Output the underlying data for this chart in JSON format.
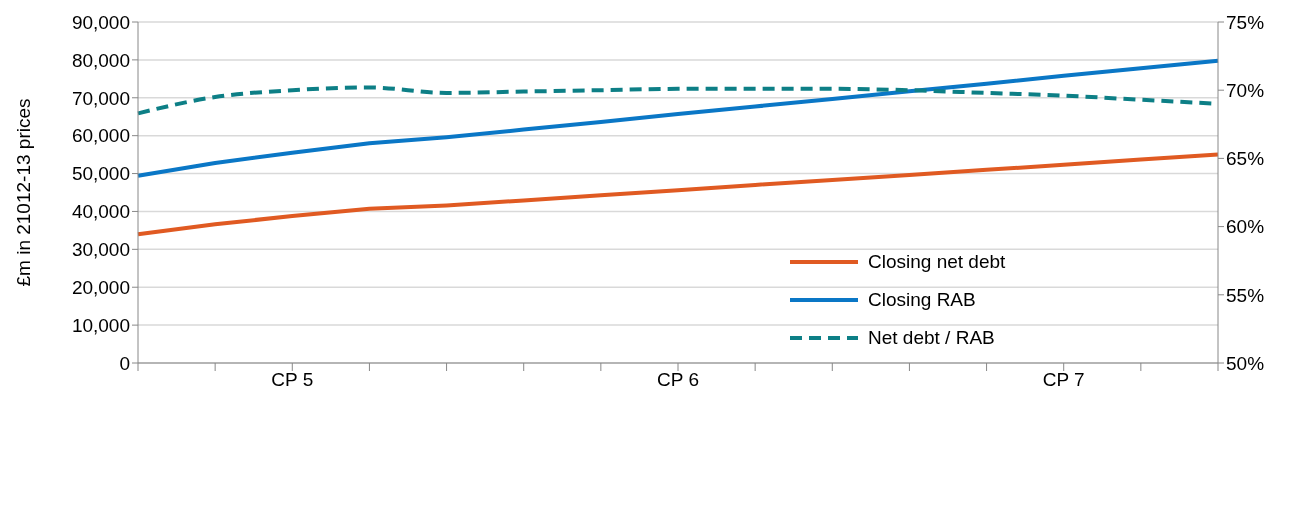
{
  "chart_data": {
    "type": "line",
    "ylabel": "£m in 21012-13  prices",
    "categories": [
      null,
      null,
      "CP 5",
      null,
      null,
      null,
      null,
      "CP 6",
      null,
      null,
      null,
      null,
      "CP 7",
      null,
      null
    ],
    "series": [
      {
        "name": "Closing net debt",
        "color": "#e05a22",
        "values": [
          34000,
          36600,
          38800,
          40700,
          41600,
          42900,
          44300,
          45600,
          47000,
          48300,
          49600,
          51000,
          52300,
          53700,
          55000
        ]
      },
      {
        "name": "Closing RAB",
        "color": "#0a77c6",
        "values": [
          49400,
          52800,
          55500,
          58000,
          59600,
          61600,
          63600,
          65700,
          67700,
          69700,
          71700,
          73700,
          75800,
          77800,
          79800
        ]
      },
      {
        "name": "Net debt / RAB",
        "color": "#0d7f86",
        "axis": "y2",
        "line_style": "dashed",
        "values": [
          68.3,
          69.5,
          70.0,
          70.2,
          69.8,
          69.9,
          70.0,
          70.1,
          70.1,
          70.1,
          70.0,
          69.8,
          69.6,
          69.3,
          69.0
        ]
      }
    ],
    "ylim": [
      0,
      90000
    ],
    "yticks": [
      {
        "value": 0,
        "label": "0"
      },
      {
        "value": 10000,
        "label": "10,000"
      },
      {
        "value": 20000,
        "label": "20,000"
      },
      {
        "value": 30000,
        "label": "30,000"
      },
      {
        "value": 40000,
        "label": "40,000"
      },
      {
        "value": 50000,
        "label": "50,000"
      },
      {
        "value": 60000,
        "label": "60,000"
      },
      {
        "value": 70000,
        "label": "70,000"
      },
      {
        "value": 80000,
        "label": "80,000"
      },
      {
        "value": 90000,
        "label": "90,000"
      }
    ],
    "y2lim": [
      50,
      75
    ],
    "y2ticks": [
      {
        "value": 50,
        "label": "50%"
      },
      {
        "value": 55,
        "label": "55%"
      },
      {
        "value": 60,
        "label": "60%"
      },
      {
        "value": 65,
        "label": "65%"
      },
      {
        "value": 70,
        "label": "70%"
      },
      {
        "value": 75,
        "label": "75%"
      }
    ],
    "grid": "y",
    "legend": "bottom right",
    "marker": "none",
    "line_style": "solid"
  }
}
